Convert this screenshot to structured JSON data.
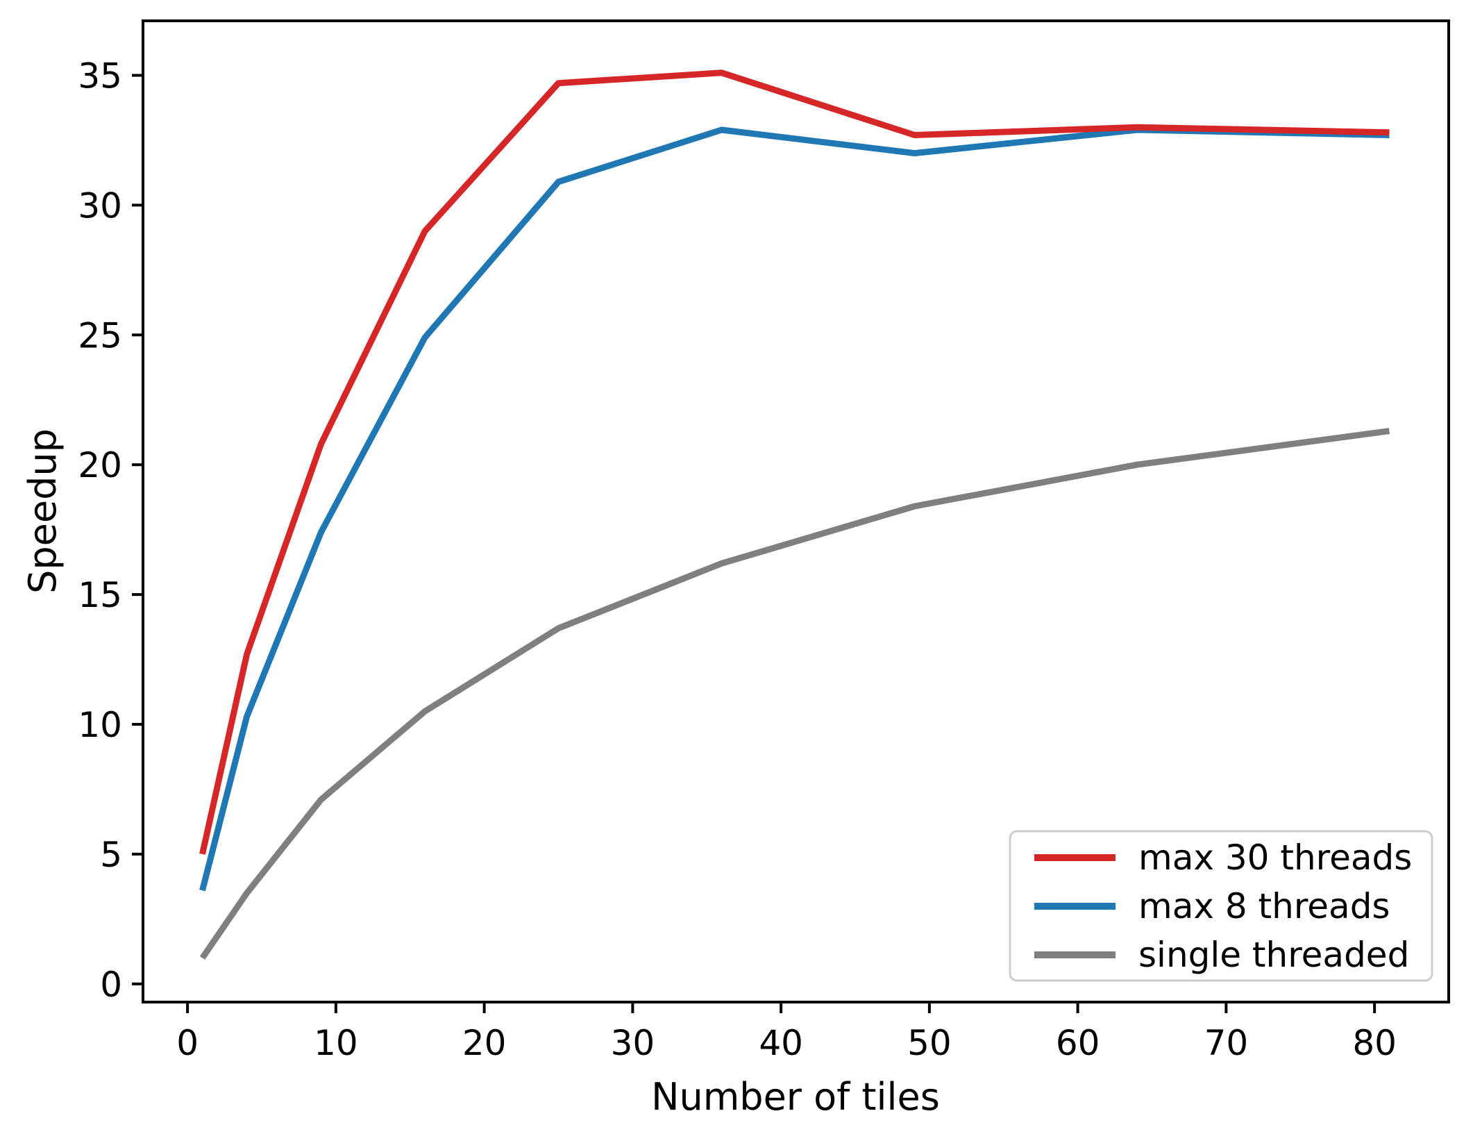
{
  "chart_data": {
    "type": "line",
    "title": "",
    "xlabel": "Number of tiles",
    "ylabel": "Speedup",
    "x": [
      1,
      4,
      9,
      16,
      25,
      36,
      49,
      64,
      81
    ],
    "series": [
      {
        "name": "max 30 threads",
        "color": "#d62728",
        "values": [
          5.0,
          12.7,
          20.8,
          29.0,
          34.7,
          35.1,
          32.7,
          33.0,
          32.8
        ]
      },
      {
        "name": "max 8 threads",
        "color": "#1f77b4",
        "values": [
          3.6,
          10.3,
          17.4,
          24.9,
          30.9,
          32.9,
          32.0,
          32.9,
          32.7
        ]
      },
      {
        "name": "single threaded",
        "color": "#7f7f7f",
        "values": [
          1.0,
          3.5,
          7.1,
          10.5,
          13.7,
          16.2,
          18.4,
          20.0,
          21.3
        ]
      }
    ],
    "xticks": [
      0,
      10,
      20,
      30,
      40,
      50,
      60,
      70,
      80
    ],
    "yticks": [
      0,
      5,
      10,
      15,
      20,
      25,
      30,
      35
    ],
    "xlim": [
      -3,
      85
    ],
    "ylim": [
      -0.7,
      37.1
    ],
    "grid": false,
    "legend_position": "lower right",
    "axis_color": "#000000",
    "legend_border_color": "#cccccc",
    "legend_background": "#ffffff"
  }
}
